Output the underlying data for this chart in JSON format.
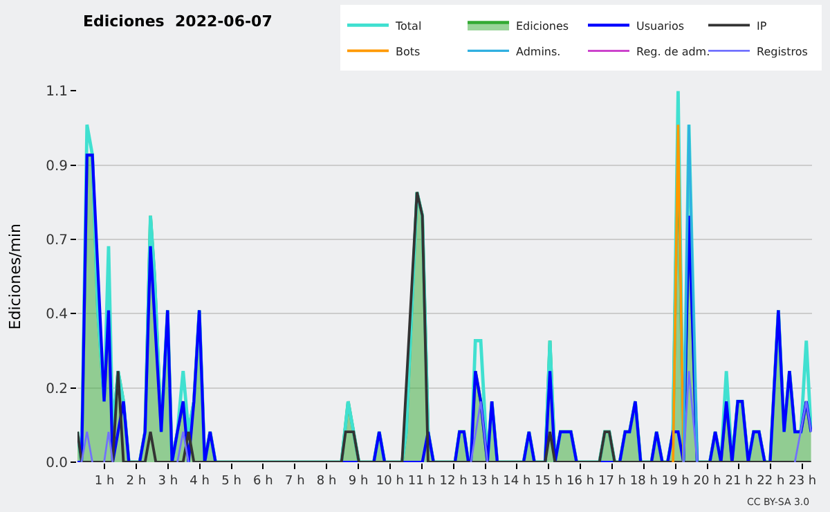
{
  "chart_data": {
    "type": "line",
    "title": "Ediciones  2022-06-07",
    "ylabel": "Ediciones/min",
    "xlim": [
      0.15,
      23.3
    ],
    "ylim": [
      0,
      1.1
    ],
    "xticks": [
      {
        "value": 1,
        "label": "1 h"
      },
      {
        "value": 2,
        "label": "2 h"
      },
      {
        "value": 3,
        "label": "3 h"
      },
      {
        "value": 4,
        "label": "4 h"
      },
      {
        "value": 5,
        "label": "5 h"
      },
      {
        "value": 6,
        "label": "6 h"
      },
      {
        "value": 7,
        "label": "7 h"
      },
      {
        "value": 8,
        "label": "8 h"
      },
      {
        "value": 9,
        "label": "9 h"
      },
      {
        "value": 10,
        "label": "10 h"
      },
      {
        "value": 11,
        "label": "11 h"
      },
      {
        "value": 12,
        "label": "12 h"
      },
      {
        "value": 13,
        "label": "13 h"
      },
      {
        "value": 14,
        "label": "14 h"
      },
      {
        "value": 15,
        "label": "15 h"
      },
      {
        "value": 16,
        "label": "16 h"
      },
      {
        "value": 17,
        "label": "17 h"
      },
      {
        "value": 18,
        "label": "18 h"
      },
      {
        "value": 19,
        "label": "19 h"
      },
      {
        "value": 20,
        "label": "20 h"
      },
      {
        "value": 21,
        "label": "21 h"
      },
      {
        "value": 22,
        "label": "22 h"
      },
      {
        "value": 23,
        "label": "23 h"
      }
    ],
    "yticks": [
      {
        "value": 0,
        "label": "0.0"
      },
      {
        "value": 0.22,
        "label": "0.2"
      },
      {
        "value": 0.44,
        "label": "0.4"
      },
      {
        "value": 0.66,
        "label": "0.7"
      },
      {
        "value": 0.88,
        "label": "0.9"
      },
      1.1
    ],
    "grid": "y",
    "legend": "top right",
    "annotations": [
      "CC BY-SA 3.0"
    ],
    "series": [
      {
        "name": "Total",
        "color": "#40e0d0",
        "x": [
          0.15,
          0.28,
          0.45,
          0.62,
          0.79,
          0.99,
          1.13,
          1.26,
          1.43,
          1.6,
          1.77,
          2.11,
          2.28,
          2.45,
          2.58,
          2.79,
          2.99,
          3.13,
          3.3,
          3.48,
          3.65,
          3.82,
          3.99,
          4.16,
          4.33,
          4.5,
          8.47,
          8.68,
          9.02,
          9.49,
          9.66,
          9.83,
          10.38,
          10.51,
          10.85,
          11.02,
          11.2,
          11.37,
          12.05,
          12.19,
          12.33,
          12.47,
          12.55,
          12.69,
          12.86,
          13.07,
          13.21,
          13.38,
          14.21,
          14.38,
          14.55,
          14.89,
          15.04,
          15.2,
          15.37,
          15.51,
          15.7,
          15.88,
          16.6,
          16.77,
          16.91,
          17.08,
          17.24,
          17.41,
          17.55,
          17.73,
          17.9,
          18.24,
          18.4,
          18.58,
          18.75,
          18.92,
          19.08,
          19.25,
          19.42,
          19.68,
          20.08,
          20.25,
          20.43,
          20.6,
          20.78,
          20.96,
          21.1,
          21.29,
          21.46,
          21.63,
          21.81,
          21.98,
          22.24,
          22.42,
          22.59,
          22.76,
          22.95,
          23.12,
          23.27
        ],
        "values": [
          0.09,
          0,
          1.0,
          0.91,
          0.45,
          0.18,
          0.64,
          0.09,
          0.27,
          0.18,
          0,
          0,
          0.09,
          0.73,
          0.55,
          0.09,
          0.45,
          0,
          0.09,
          0.27,
          0.09,
          0.18,
          0.45,
          0,
          0.09,
          0,
          0,
          0.18,
          0,
          0,
          0.09,
          0,
          0,
          0.09,
          0.8,
          0.73,
          0.09,
          0,
          0,
          0.09,
          0.09,
          0,
          0,
          0.36,
          0.36,
          0,
          0.18,
          0,
          0,
          0.09,
          0,
          0,
          0.36,
          0,
          0.09,
          0.09,
          0.09,
          0,
          0,
          0.09,
          0.09,
          0,
          0,
          0.09,
          0.09,
          0.18,
          0,
          0,
          0.09,
          0,
          0,
          0.09,
          1.1,
          0,
          1.0,
          0,
          0,
          0.09,
          0,
          0.27,
          0,
          0.18,
          0.18,
          0,
          0.09,
          0.09,
          0,
          0,
          0.45,
          0.09,
          0.27,
          0.09,
          0.09,
          0.36,
          0.09
        ]
      },
      {
        "name": "Ediciones",
        "type": "area",
        "color": "#33aa33",
        "x": [
          0.15,
          0.28,
          0.45,
          0.62,
          0.79,
          0.99,
          1.13,
          1.26,
          1.43,
          1.6,
          1.77,
          2.11,
          2.28,
          2.45,
          2.58,
          2.79,
          2.99,
          3.13,
          3.3,
          3.48,
          3.65,
          3.82,
          3.99,
          4.16,
          4.33,
          4.5,
          8.47,
          8.68,
          9.02,
          9.49,
          9.66,
          9.83,
          10.38,
          10.51,
          10.85,
          11.02,
          11.2,
          11.37,
          12.05,
          12.19,
          12.33,
          12.47,
          12.55,
          12.69,
          12.86,
          13.07,
          13.21,
          13.38,
          14.21,
          14.38,
          14.55,
          14.89,
          15.04,
          15.2,
          15.37,
          15.51,
          15.7,
          15.88,
          16.6,
          16.77,
          16.91,
          17.08,
          17.24,
          17.41,
          17.55,
          17.73,
          17.9,
          18.24,
          18.4,
          18.58,
          18.75,
          18.92,
          19.08,
          19.25,
          19.42,
          19.68,
          20.08,
          20.25,
          20.43,
          20.6,
          20.78,
          20.96,
          21.1,
          21.29,
          21.46,
          21.63,
          21.81,
          21.98,
          22.24,
          22.42,
          22.59,
          22.76,
          22.95,
          23.12,
          23.27
        ],
        "values": [
          0.09,
          0,
          0.91,
          0.91,
          0.45,
          0.18,
          0.45,
          0.09,
          0.27,
          0.18,
          0,
          0,
          0.09,
          0.73,
          0.55,
          0.09,
          0.45,
          0,
          0.09,
          0.18,
          0.09,
          0.18,
          0.45,
          0,
          0.09,
          0,
          0,
          0.18,
          0,
          0,
          0.09,
          0,
          0,
          0.09,
          0.8,
          0.73,
          0.09,
          0,
          0,
          0.09,
          0.09,
          0,
          0,
          0.27,
          0.18,
          0,
          0.18,
          0,
          0,
          0.09,
          0,
          0,
          0.36,
          0,
          0.09,
          0.09,
          0.09,
          0,
          0,
          0.09,
          0.09,
          0,
          0,
          0.09,
          0.09,
          0.18,
          0,
          0,
          0.09,
          0,
          0,
          0.09,
          1.0,
          0,
          0.73,
          0,
          0,
          0.09,
          0,
          0.18,
          0,
          0.18,
          0.18,
          0,
          0.09,
          0.09,
          0,
          0,
          0.45,
          0.09,
          0.27,
          0.09,
          0.09,
          0.18,
          0.09
        ]
      },
      {
        "name": "Usuarios",
        "color": "#0000ff",
        "x": [
          0.15,
          0.28,
          0.45,
          0.62,
          0.99,
          1.13,
          1.26,
          1.6,
          1.77,
          2.11,
          2.28,
          2.45,
          2.79,
          2.99,
          3.13,
          3.3,
          3.48,
          3.65,
          3.82,
          3.99,
          4.16,
          4.33,
          4.5,
          9.49,
          9.66,
          9.83,
          11.02,
          11.2,
          11.37,
          12.05,
          12.19,
          12.33,
          12.47,
          12.55,
          12.69,
          12.86,
          13.07,
          13.21,
          13.38,
          14.21,
          14.38,
          14.55,
          14.89,
          15.04,
          15.2,
          15.37,
          15.51,
          15.7,
          15.88,
          17.24,
          17.41,
          17.55,
          17.73,
          17.9,
          18.24,
          18.4,
          18.58,
          18.75,
          18.92,
          19.08,
          19.25,
          19.42,
          19.68,
          20.08,
          20.25,
          20.43,
          20.6,
          20.78,
          20.96,
          21.1,
          21.29,
          21.46,
          21.63,
          21.81,
          21.98,
          22.24,
          22.42,
          22.59,
          22.76,
          22.95,
          23.12,
          23.27
        ],
        "values": [
          0,
          0,
          0.91,
          0.91,
          0.18,
          0.45,
          0,
          0.18,
          0,
          0,
          0.09,
          0.64,
          0.09,
          0.45,
          0,
          0.09,
          0.18,
          0,
          0.18,
          0.45,
          0,
          0.09,
          0,
          0,
          0.09,
          0,
          0,
          0.09,
          0,
          0,
          0.09,
          0.09,
          0,
          0,
          0.27,
          0.18,
          0,
          0.18,
          0,
          0,
          0.09,
          0,
          0,
          0.27,
          0,
          0.09,
          0.09,
          0.09,
          0,
          0,
          0.09,
          0.09,
          0.18,
          0,
          0,
          0.09,
          0,
          0,
          0.09,
          0.09,
          0,
          0.73,
          0,
          0,
          0.09,
          0,
          0.18,
          0,
          0.18,
          0.18,
          0,
          0.09,
          0.09,
          0,
          0,
          0.45,
          0.09,
          0.27,
          0.09,
          0.09,
          0.18,
          0.09
        ]
      },
      {
        "name": "IP",
        "color": "#333333",
        "x": [
          0.15,
          0.28,
          1.26,
          1.43,
          1.6,
          2.28,
          2.45,
          2.62,
          3.48,
          3.65,
          3.82,
          8.47,
          8.6,
          8.85,
          9.02,
          10.38,
          10.85,
          11.02,
          11.2,
          14.89,
          15.04,
          15.2,
          16.6,
          16.77,
          16.91,
          17.08,
          23.27
        ],
        "values": [
          0.09,
          0,
          0,
          0.27,
          0,
          0,
          0.09,
          0,
          0,
          0.09,
          0,
          0,
          0.09,
          0.09,
          0,
          0,
          0.8,
          0.73,
          0,
          0,
          0.09,
          0,
          0,
          0.09,
          0.09,
          0,
          0
        ]
      },
      {
        "name": "Bots",
        "color": "#ff9900",
        "x": [
          18.92,
          19.08,
          19.25
        ],
        "values": [
          0,
          1.0,
          0
        ]
      },
      {
        "name": "Admins.",
        "color": "#30b0e0",
        "x": [
          19.25,
          19.42,
          19.68
        ],
        "values": [
          0,
          1.0,
          0
        ]
      },
      {
        "name": "Reg. de adm.",
        "color": "#cc44cc"
      },
      {
        "name": "Registros",
        "color": "#7070ff",
        "x": [
          0.28,
          0.45,
          0.62,
          0.8,
          0.99,
          1.13,
          1.26,
          2,
          3.3,
          3.48,
          3.65,
          8,
          12.55,
          12.86,
          13.07,
          16,
          19.25,
          19.42,
          19.68,
          21,
          22.76,
          23.12,
          23.27
        ],
        "values": [
          0,
          0.09,
          0,
          null,
          0,
          0.09,
          0,
          null,
          0,
          0.09,
          0,
          null,
          0,
          0.18,
          0,
          null,
          0,
          0.27,
          0,
          null,
          0,
          0.18,
          0.09
        ]
      }
    ]
  }
}
